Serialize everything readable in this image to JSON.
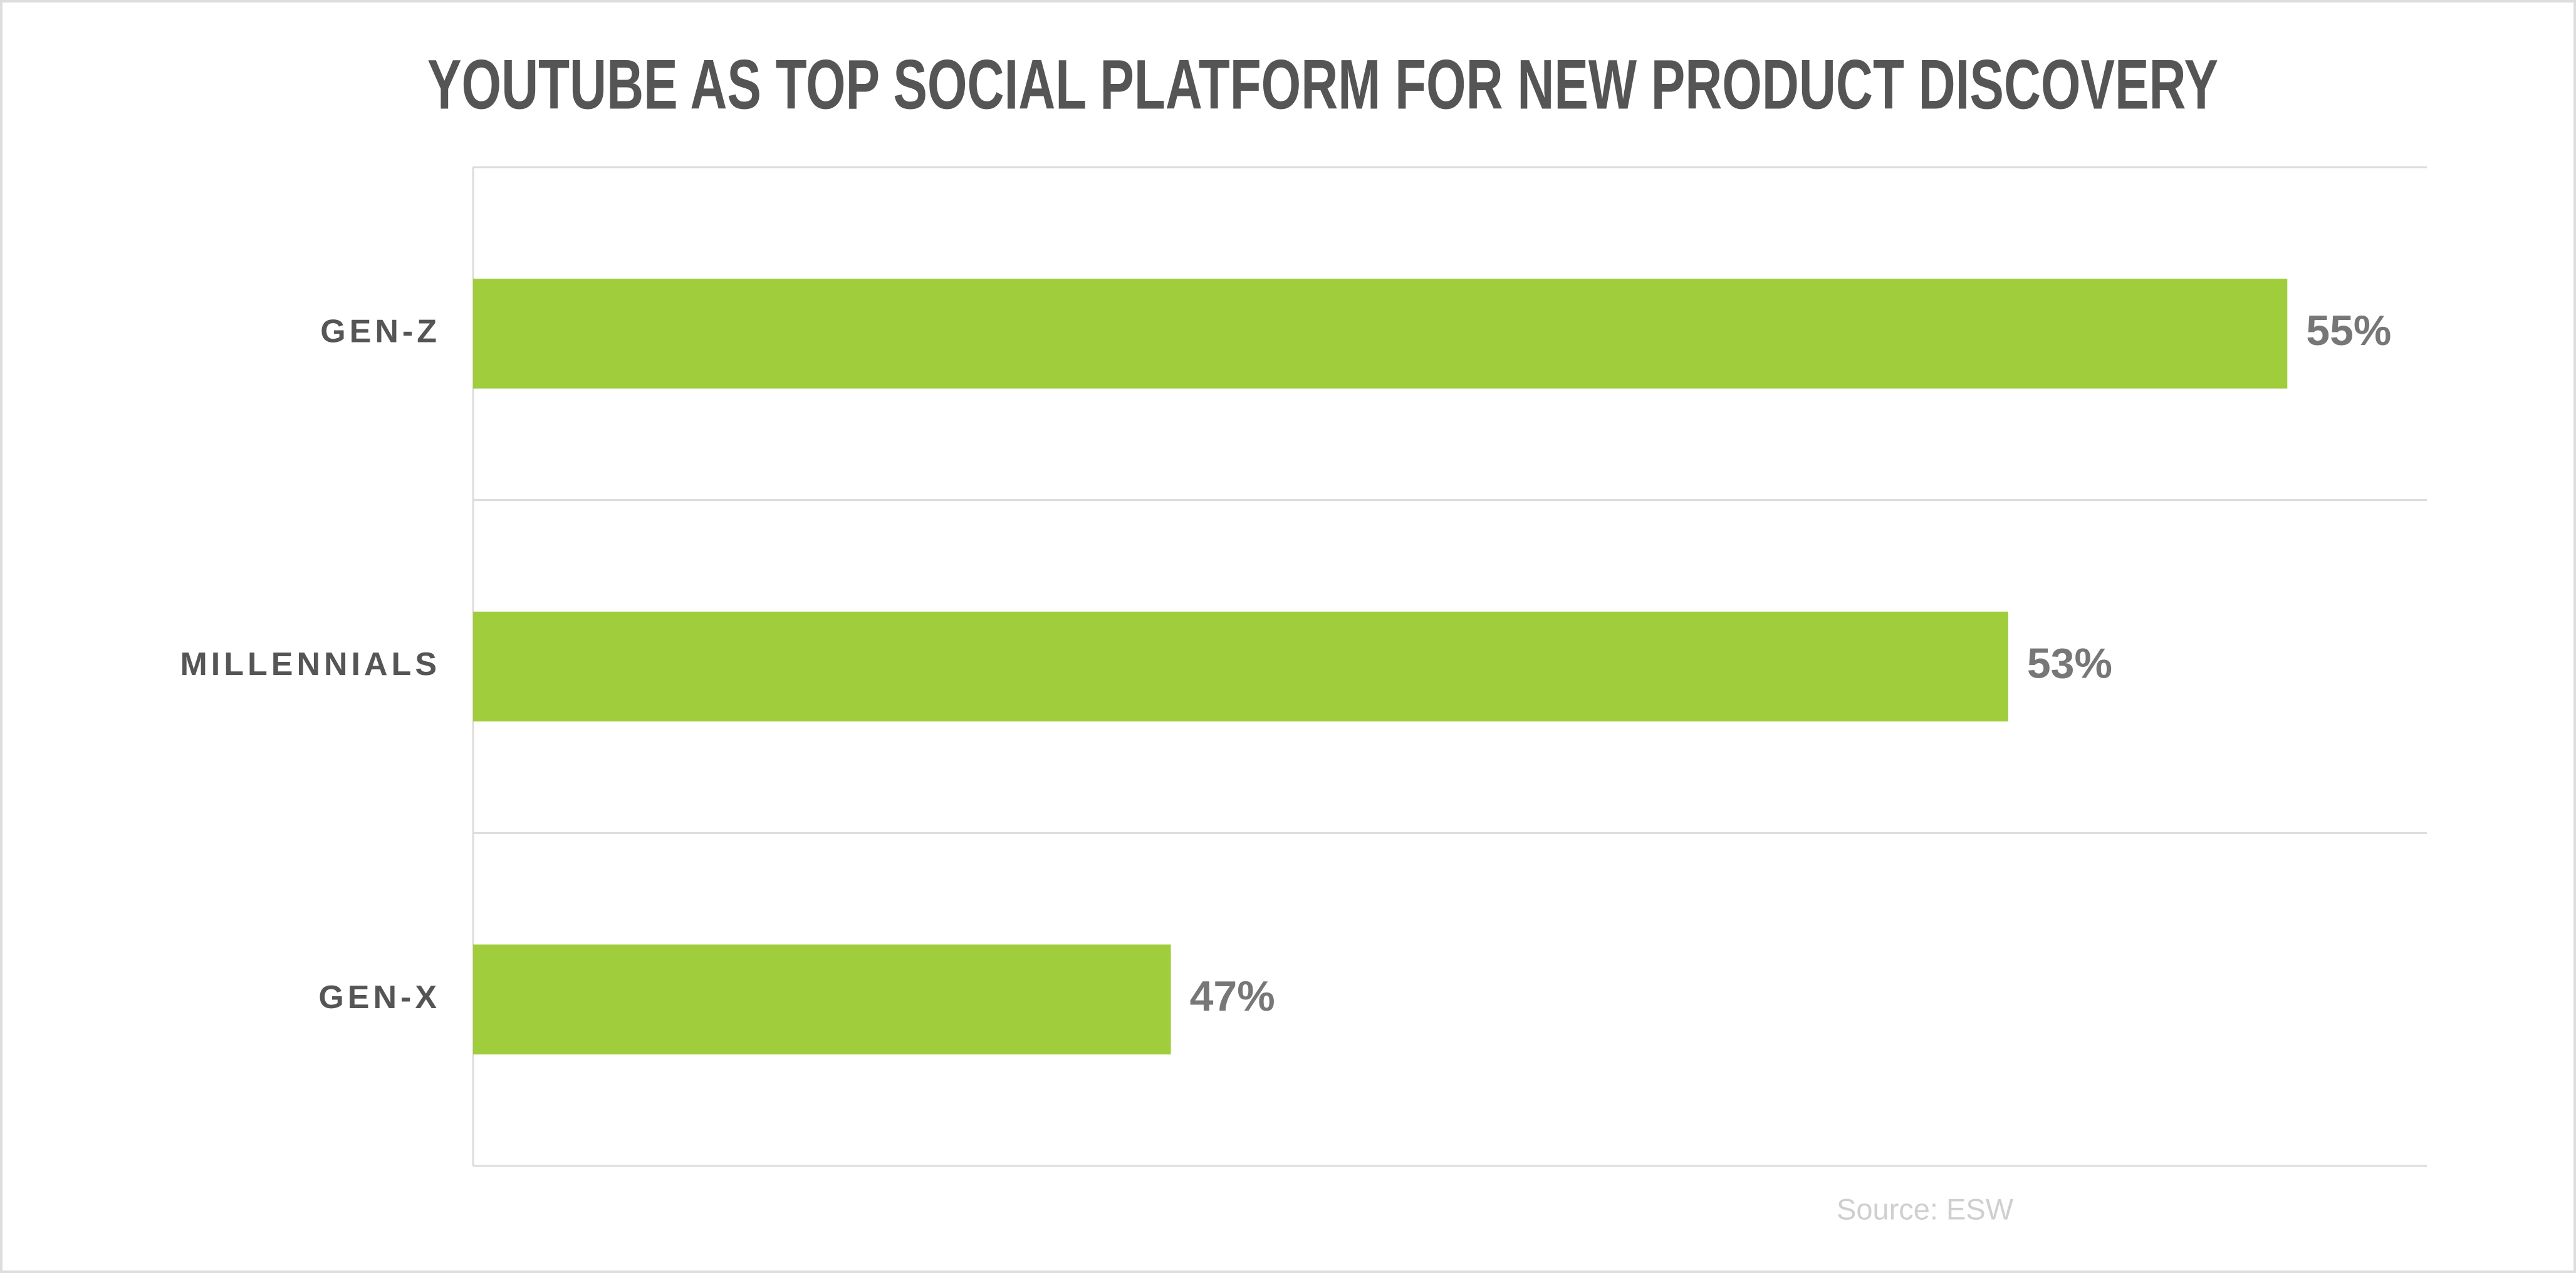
{
  "chart_data": {
    "type": "hbar",
    "title": "YOUTUBE AS TOP SOCIAL PLATFORM FOR NEW PRODUCT DISCOVERY",
    "categories": [
      "GEN-Z",
      "MILLENNIALS",
      "GEN-X"
    ],
    "values": [
      55,
      53,
      47
    ],
    "value_labels": [
      "55%",
      "53%",
      "47%"
    ],
    "color": "#a0cd3c",
    "xlim": [
      42,
      56
    ],
    "source": "Source: ESW"
  }
}
